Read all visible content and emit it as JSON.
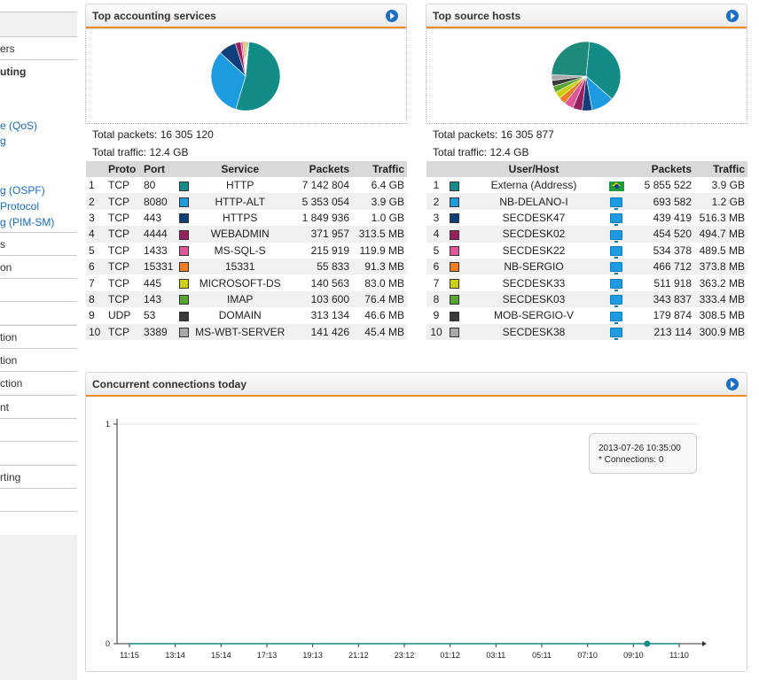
{
  "sidebar": {
    "items": [
      {
        "label": "ers",
        "selected": false
      },
      {
        "label": "uting",
        "selected": true
      },
      {
        "label": "s",
        "selected": false
      },
      {
        "label": "on",
        "selected": false
      },
      {
        "label": "",
        "selected": false
      },
      {
        "label": "",
        "selected": false
      },
      {
        "label": "tion",
        "selected": false
      },
      {
        "label": "tion",
        "selected": false
      },
      {
        "label": "ction",
        "selected": false
      },
      {
        "label": "nt",
        "selected": false
      },
      {
        "label": "",
        "selected": false
      },
      {
        "label": "",
        "selected": false
      },
      {
        "label": "rting",
        "selected": false
      },
      {
        "label": "",
        "selected": false
      }
    ],
    "links": [
      "e (QoS)",
      "g",
      "g (OSPF)",
      "Protocol",
      "g (PIM-SM)"
    ]
  },
  "services": {
    "title": "Top accounting services",
    "total_packets": "Total packets: 16 305 120",
    "total_traffic": "Total traffic: 12.4 GB",
    "columns": [
      "Proto",
      "Port",
      "",
      "Service",
      "Packets",
      "Traffic"
    ],
    "rows": [
      {
        "n": "1",
        "proto": "TCP",
        "port": "80",
        "color": "#128c86",
        "service": "HTTP",
        "packets": "7 142 804",
        "traffic": "6.4 GB"
      },
      {
        "n": "2",
        "proto": "TCP",
        "port": "8080",
        "color": "#1d9be0",
        "service": "HTTP-ALT",
        "packets": "5 353 054",
        "traffic": "3.9 GB"
      },
      {
        "n": "3",
        "proto": "TCP",
        "port": "443",
        "color": "#103e7a",
        "service": "HTTPS",
        "packets": "1 849 936",
        "traffic": "1.0 GB"
      },
      {
        "n": "4",
        "proto": "TCP",
        "port": "4444",
        "color": "#962060",
        "service": "WEBADMIN",
        "packets": "371 957",
        "traffic": "313.5 MB"
      },
      {
        "n": "5",
        "proto": "TCP",
        "port": "1433",
        "color": "#e0579a",
        "service": "MS-SQL-S",
        "packets": "215 919",
        "traffic": "119.9 MB"
      },
      {
        "n": "6",
        "proto": "TCP",
        "port": "15331",
        "color": "#f07d1e",
        "service": "15331",
        "packets": "55 833",
        "traffic": "91.3 MB"
      },
      {
        "n": "7",
        "proto": "TCP",
        "port": "445",
        "color": "#cfcf12",
        "service": "MICROSOFT-DS",
        "packets": "140 563",
        "traffic": "83.0 MB"
      },
      {
        "n": "8",
        "proto": "TCP",
        "port": "143",
        "color": "#58a532",
        "service": "IMAP",
        "packets": "103 600",
        "traffic": "76.4 MB"
      },
      {
        "n": "9",
        "proto": "UDP",
        "port": "53",
        "color": "#3a3a3a",
        "service": "DOMAIN",
        "packets": "313 134",
        "traffic": "46.6 MB"
      },
      {
        "n": "10",
        "proto": "TCP",
        "port": "3389",
        "color": "#a8a8a8",
        "service": "MS-WBT-SERVER",
        "packets": "141 426",
        "traffic": "45.4 MB"
      }
    ],
    "pie": [
      6.4,
      3.9,
      1.0,
      0.3135,
      0.1199,
      0.0913,
      0.083,
      0.0764,
      0.0466,
      0.0454
    ]
  },
  "hosts": {
    "title": "Top source hosts",
    "total_packets": "Total packets: 16 305 877",
    "total_traffic": "Total traffic: 12.4 GB",
    "columns": [
      "",
      "User/Host",
      "",
      "Packets",
      "Traffic"
    ],
    "rows": [
      {
        "n": "1",
        "color": "#128c86",
        "host": "Externa (Address)",
        "icon": "flag-brazil-icon",
        "packets": "5 855 522",
        "traffic": "3.9 GB"
      },
      {
        "n": "2",
        "color": "#1d9be0",
        "host": "NB-DELANO-I",
        "icon": "computer-icon",
        "packets": "693 582",
        "traffic": "1.2 GB"
      },
      {
        "n": "3",
        "color": "#103e7a",
        "host": "SECDESK47",
        "icon": "computer-icon",
        "packets": "439 419",
        "traffic": "516.3 MB"
      },
      {
        "n": "4",
        "color": "#962060",
        "host": "SECDESK02",
        "icon": "computer-icon",
        "packets": "454 520",
        "traffic": "494.7 MB"
      },
      {
        "n": "5",
        "color": "#e0579a",
        "host": "SECDESK22",
        "icon": "computer-icon",
        "packets": "534 378",
        "traffic": "489.5 MB"
      },
      {
        "n": "6",
        "color": "#f07d1e",
        "host": "NB-SERGIO",
        "icon": "computer-icon",
        "packets": "466 712",
        "traffic": "373.8 MB"
      },
      {
        "n": "7",
        "color": "#cfcf12",
        "host": "SECDESK33",
        "icon": "computer-icon",
        "packets": "511 918",
        "traffic": "363.2 MB"
      },
      {
        "n": "8",
        "color": "#58a532",
        "host": "SECDESK03",
        "icon": "computer-icon",
        "packets": "343 837",
        "traffic": "333.4 MB"
      },
      {
        "n": "9",
        "color": "#3a3a3a",
        "host": "MOB-SERGIO-V",
        "icon": "computer-icon",
        "packets": "179 874",
        "traffic": "308.5 MB"
      },
      {
        "n": "10",
        "color": "#a8a8a8",
        "host": "SECDESK38",
        "icon": "computer-icon",
        "packets": "213 114",
        "traffic": "300.9 MB"
      }
    ],
    "pie": [
      3.9,
      1.2,
      0.5163,
      0.4947,
      0.4895,
      0.3738,
      0.3632,
      0.3334,
      0.3085,
      0.3009,
      2.9
    ]
  },
  "connections": {
    "title": "Concurrent connections today",
    "tooltip": {
      "time": "2013-07-26 10:35:00",
      "value": "* Connections: 0"
    }
  },
  "chart_data": {
    "type": "line",
    "title": "Concurrent connections today",
    "x_ticks": [
      "11:15",
      "13:14",
      "15:14",
      "17:13",
      "19:13",
      "21:12",
      "23:12",
      "01:12",
      "03:11",
      "05:11",
      "07:10",
      "09:10",
      "11:10"
    ],
    "y_ticks": [
      "0",
      "1"
    ],
    "ylim": [
      0,
      1
    ],
    "series": [
      {
        "values": [
          0,
          0,
          0,
          0,
          0,
          0,
          0,
          0,
          0,
          0,
          0,
          0,
          0
        ]
      }
    ],
    "highlight_point": {
      "x": "10:35",
      "y": 0
    }
  }
}
